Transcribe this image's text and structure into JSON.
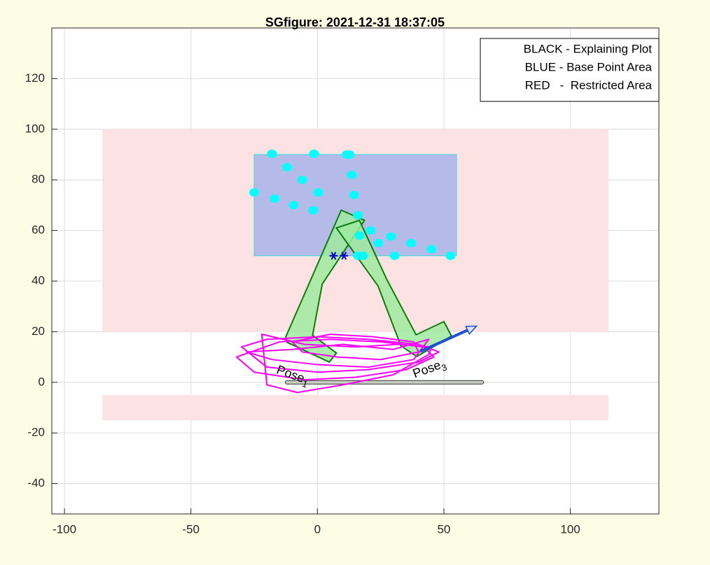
{
  "chart_data": {
    "type": "composite",
    "title": "SGfigure: 2021-12-31 18:37:05",
    "xlim": [
      -105,
      135
    ],
    "ylim": [
      -52,
      140
    ],
    "xticks": [
      -100,
      -50,
      0,
      50,
      100
    ],
    "yticks": [
      -40,
      -20,
      0,
      20,
      40,
      60,
      80,
      100,
      120
    ],
    "grid": true,
    "legend_position": "upper right",
    "legend": [
      "BLACK - Explaining Plot",
      "BLUE - Base Point Area",
      "RED   -  Restricted Area"
    ],
    "series": [
      {
        "type": "rect",
        "color": "#fde2e3",
        "x": [
          -85,
          115
        ],
        "y": [
          20,
          100
        ]
      },
      {
        "type": "rect",
        "color": "#fde2e3",
        "x": [
          -85,
          115
        ],
        "y": [
          -15,
          -5
        ]
      },
      {
        "type": "rect",
        "color": "#b4bbe8",
        "edge": "#33dddd",
        "x": [
          -25,
          55
        ],
        "y": [
          50,
          90
        ]
      },
      {
        "type": "line",
        "color": "#c8cfc0",
        "edge": "#333333",
        "x": [
          -12,
          65
        ],
        "y": [
          0,
          0
        ]
      },
      {
        "type": "polygon",
        "color": "#9fea9f",
        "edge": "#0b7d0b",
        "x": [
          -12.5,
          9.4,
          18.6,
          1.9,
          -1.9,
          7.5,
          4.7,
          -12
        ],
        "y": [
          18,
          68,
          64,
          38.8,
          18.6,
          11.6,
          8,
          15.8
        ]
      },
      {
        "type": "polygon",
        "color": "#9fea9f",
        "edge": "#0b7d0b",
        "x": [
          7.5,
          16.6,
          27.4,
          39,
          50,
          53,
          39.3,
          33,
          24
        ],
        "y": [
          61,
          64,
          40.7,
          18.8,
          24,
          18.3,
          10.2,
          14.4,
          38
        ]
      },
      {
        "type": "scatter",
        "color": "#00ffff",
        "x": [
          -18,
          -1.4,
          11.6,
          12.7,
          -12,
          -6,
          13.6,
          -25,
          -17,
          -9.4,
          0.3,
          -1.7,
          14.4,
          16,
          21,
          16.6,
          24,
          29,
          37,
          45,
          52.6,
          30.5,
          16,
          18
        ],
        "y": [
          90.3,
          90.3,
          90,
          90,
          85,
          80,
          82,
          75,
          72.6,
          70,
          75,
          68,
          74,
          66,
          60,
          58,
          55,
          57.6,
          55,
          52.6,
          50,
          50,
          50,
          50
        ]
      },
      {
        "type": "star",
        "color": "#0000cc",
        "x": [
          6.4,
          10.5
        ],
        "y": [
          50,
          50
        ]
      },
      {
        "type": "line",
        "color": "#ff00ff",
        "x": [
          -30,
          -20,
          0,
          20,
          40,
          48,
          40,
          20,
          0,
          -20,
          -30
        ],
        "y": [
          14,
          17,
          18,
          17,
          15,
          12,
          8,
          5,
          4,
          6,
          14
        ]
      },
      {
        "type": "line",
        "color": "#ff00ff",
        "x": [
          -32,
          -15,
          5,
          25,
          42,
          46,
          35,
          15,
          -5,
          -25,
          -32
        ],
        "y": [
          10,
          16,
          17,
          16,
          14,
          10,
          5,
          2,
          1,
          4,
          10
        ]
      },
      {
        "type": "line",
        "color": "#ff00ff",
        "x": [
          -22,
          -5,
          15,
          32,
          45,
          44,
          30,
          10,
          -8,
          -20,
          -22
        ],
        "y": [
          19,
          15,
          14,
          15,
          14,
          11,
          3,
          -1,
          -4,
          -1,
          19
        ]
      },
      {
        "type": "line",
        "color": "#ff00ff",
        "x": [
          -28,
          -10,
          10,
          30,
          44,
          38,
          20,
          0,
          -18,
          -28
        ],
        "y": [
          12,
          13,
          15,
          13,
          17,
          9,
          6,
          7,
          9,
          12
        ]
      },
      {
        "type": "line",
        "color": "#ff00ff",
        "x": [
          -10,
          5,
          22,
          38,
          40,
          25,
          8,
          -6,
          -10
        ],
        "y": [
          16,
          19,
          18,
          16,
          12,
          9,
          10,
          12,
          16
        ]
      },
      {
        "type": "arrow",
        "color": "#1a4fd6",
        "x": [
          40.7,
          62.9
        ],
        "y": [
          12.2,
          22.2
        ]
      }
    ],
    "annotations": [
      {
        "text": "Pose",
        "sub": "1",
        "x": -16,
        "y": 5
      },
      {
        "text": "Pose",
        "sub": "3",
        "x": 38,
        "y": 3
      }
    ]
  }
}
